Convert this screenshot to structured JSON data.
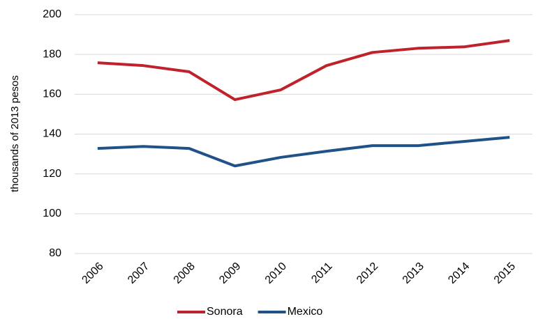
{
  "chart_data": {
    "type": "line",
    "y_label": "thousands of 2013 pesos",
    "categories": [
      "2006",
      "2007",
      "2008",
      "2009",
      "2010",
      "2011",
      "2012",
      "2013",
      "2014",
      "2015"
    ],
    "series": [
      {
        "name": "Sonora",
        "color": "#c0222b",
        "values": [
          175.8,
          174.4,
          171.3,
          157.3,
          162.2,
          174.4,
          181,
          183.1,
          183.8,
          187
        ]
      },
      {
        "name": "Mexico",
        "color": "#1f5288",
        "values": [
          132.8,
          133.8,
          132.8,
          124,
          128.3,
          131.4,
          134.2,
          134.2,
          136.3,
          138.4
        ]
      }
    ],
    "ylim": [
      80,
      200
    ],
    "yticks": [
      80,
      100,
      120,
      140,
      160,
      180,
      200
    ],
    "grid": true,
    "legend": "bottom"
  }
}
